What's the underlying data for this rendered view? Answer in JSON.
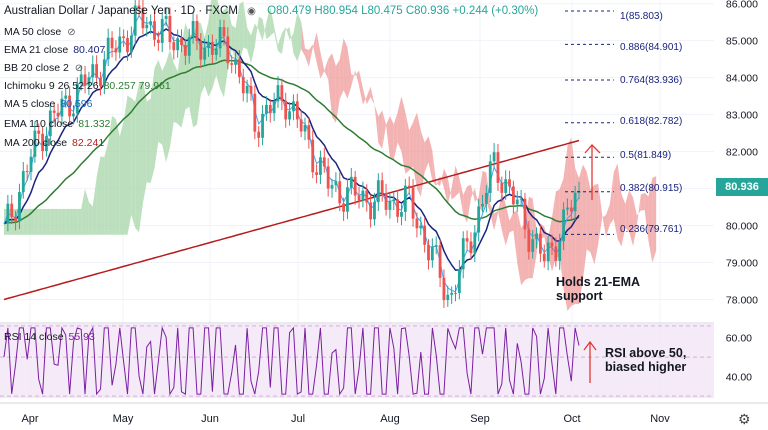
{
  "header": {
    "title": "Australian Dollar / Japanese Yen · 1D · FXCM",
    "ohlc": "O80.479 H80.954 L80.475 C80.936 +0.244 (+0.30%)"
  },
  "legend": [
    {
      "label": "MA 50 close",
      "value": ""
    },
    {
      "label": "EMA 21 close",
      "value": "80.407"
    },
    {
      "label": "BB 20 close 2",
      "value": ""
    },
    {
      "label": "Ichimoku 9 26 52 26",
      "value": "80.257  79.961"
    },
    {
      "label": "MA 5 close",
      "value": "80.596"
    },
    {
      "label": "EMA 110 close",
      "value": "81.332"
    },
    {
      "label": "MA 200 close",
      "value": "82.241"
    }
  ],
  "rsi_header": {
    "label": "RSI 14 close",
    "value": "55.93"
  },
  "annotations": {
    "support_line1": "Holds 21-EMA",
    "support_line2": "support",
    "rsi_line1": "RSI above 50,",
    "rsi_line2": "biased higher"
  },
  "last_price": "80.936",
  "colors": {
    "up": "#26a69a",
    "down": "#ef5350",
    "ema21": "#1a237e",
    "ema110": "#2e7d32",
    "ma200": "#b71c1c",
    "kumo_bull": "#a5d6a7",
    "kumo_bear": "#ef9a9a",
    "rsi": "#7b1fa2",
    "fib": "#1a237e",
    "arrow": "#e53935"
  },
  "chart_data": {
    "type": "candlestick",
    "x_ticks": [
      "Apr",
      "May",
      "Jun",
      "Jul",
      "Aug",
      "Sep",
      "Oct",
      "Nov"
    ],
    "y_ticks": [
      "86.000",
      "85.000",
      "84.000",
      "83.000",
      "82.000",
      "81.000",
      "80.000",
      "79.000",
      "78.000"
    ],
    "ylim": [
      77.5,
      86.1
    ],
    "fib_levels": [
      {
        "label": "1(85.803)",
        "value": 85.803
      },
      {
        "label": "0.886(84.901)",
        "value": 84.901
      },
      {
        "label": "0.764(83.936)",
        "value": 83.936
      },
      {
        "label": "0.618(82.782)",
        "value": 82.782
      },
      {
        "label": "0.5(81.849)",
        "value": 81.849
      },
      {
        "label": "0.382(80.915)",
        "value": 80.915
      },
      {
        "label": "0.236(79.761)",
        "value": 79.761
      }
    ],
    "price_path": [
      {
        "month": "Mar end",
        "price": 79.8
      },
      {
        "month": "Apr",
        "price": 82.5
      },
      {
        "month": "Apr late",
        "price": 84.0
      },
      {
        "month": "May early",
        "price": 85.6
      },
      {
        "month": "May",
        "price": 85.0
      },
      {
        "month": "Jun",
        "price": 84.8
      },
      {
        "month": "Jun late",
        "price": 82.8
      },
      {
        "month": "Jul early",
        "price": 83.5
      },
      {
        "month": "Jul",
        "price": 81.0
      },
      {
        "month": "Jul late",
        "price": 80.7
      },
      {
        "month": "Aug",
        "price": 80.6
      },
      {
        "month": "Aug mid",
        "price": 78.0
      },
      {
        "month": "Sep early",
        "price": 81.7
      },
      {
        "month": "Sep late",
        "price": 79.0
      },
      {
        "month": "Oct",
        "price": 80.936
      }
    ],
    "rsi": {
      "y_ticks": [
        "60.00",
        "40.00"
      ],
      "ylim": [
        29,
        67
      ],
      "last": 55.93
    }
  }
}
